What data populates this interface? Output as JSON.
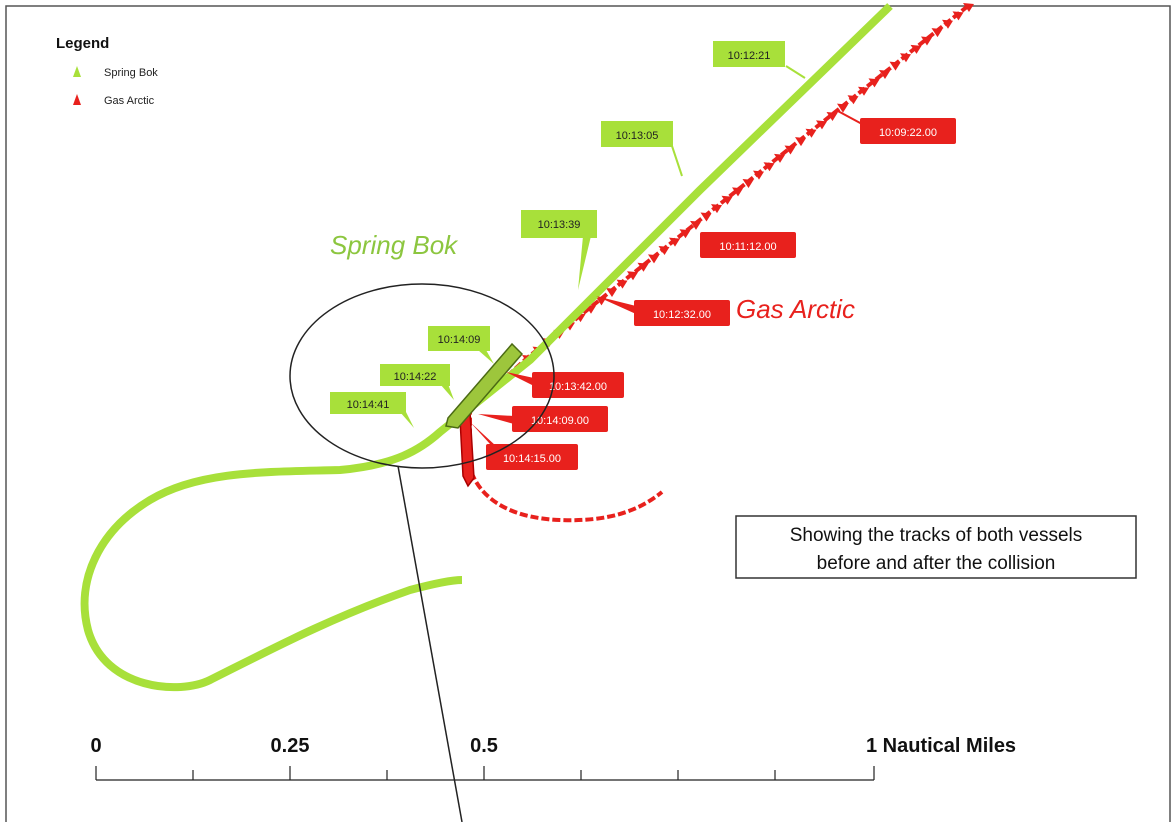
{
  "legend": {
    "title": "Legend",
    "items": [
      {
        "label": "Spring Bok",
        "color": "#a8e03a",
        "icon": "green-triangle-icon"
      },
      {
        "label": "Gas Arctic",
        "color": "#e8211d",
        "icon": "red-triangle-icon"
      }
    ]
  },
  "vessel_labels": {
    "spring_bok": "Spring Bok",
    "gas_arctic": "Gas Arctic"
  },
  "spring_bok_times": [
    "10:12:21",
    "10:13:05",
    "10:13:39",
    "10:14:09",
    "10:14:22",
    "10:14:41"
  ],
  "gas_arctic_times": [
    "10:09:22.00",
    "10:11:12.00",
    "10:12:32.00",
    "10:13:42.00",
    "10:14:09.00",
    "10:14:15.00"
  ],
  "info_box": {
    "line1": "Showing the tracks of both vessels",
    "line2": "before and after the collision"
  },
  "scale_bar": {
    "labels": [
      "0",
      "0.25",
      "0.5",
      "1 Nautical Miles"
    ]
  },
  "colors": {
    "spring_bok": "#a8e03a",
    "spring_bok_text": "#8cc63f",
    "gas_arctic": "#e8211d"
  }
}
